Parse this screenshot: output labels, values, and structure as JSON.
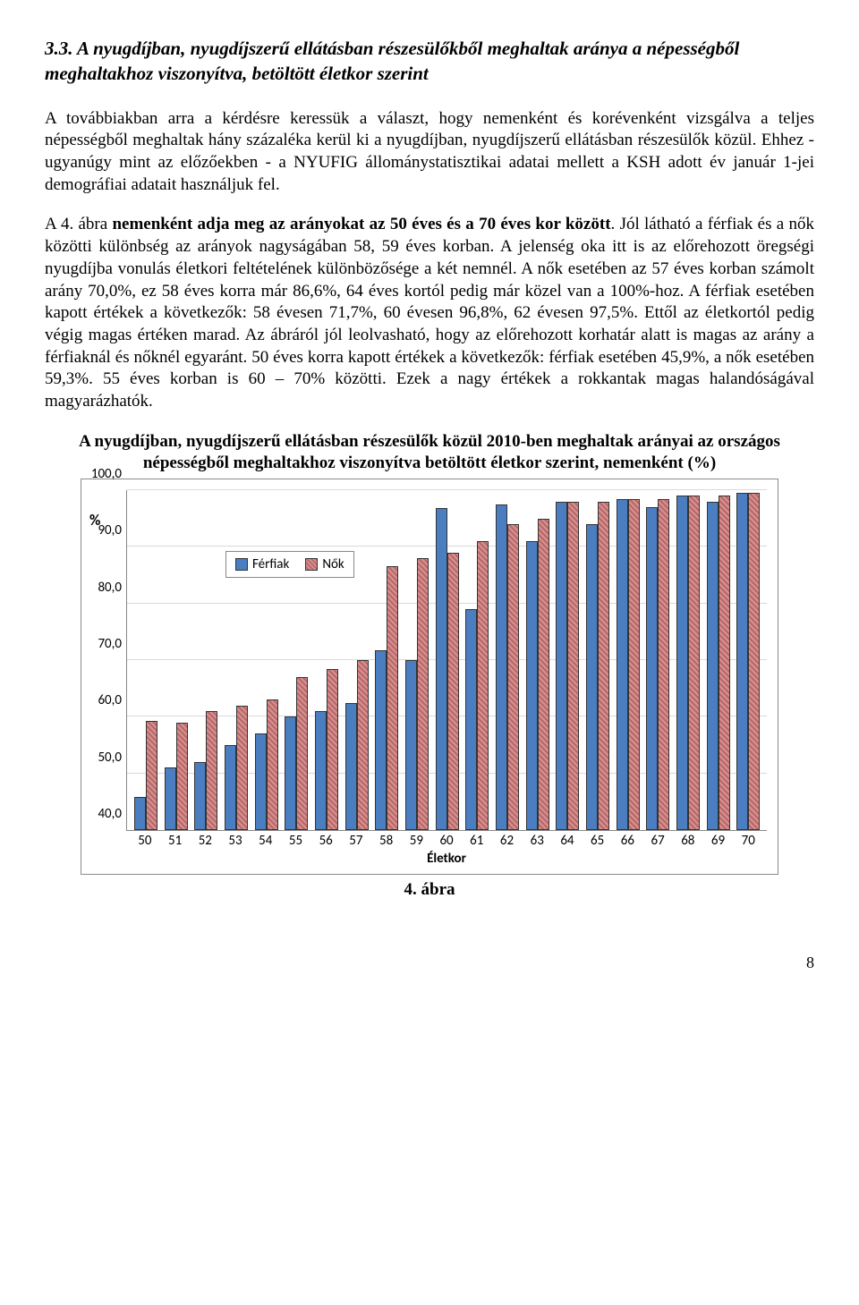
{
  "heading": "3.3. A nyugdíjban, nyugdíjszerű ellátásban részesülőkből meghaltak aránya a népességből meghaltakhoz viszonyítva, betöltött életkor szerint",
  "para1": "A továbbiakban arra a kérdésre keressük a választ, hogy nemenként és korévenként vizsgálva a teljes népességből meghaltak hány százaléka kerül ki a nyugdíjban, nyugdíjszerű ellátásban részesülők közül. Ehhez - ugyanúgy mint az előzőekben - a NYUFIG állománystatisztikai adatai mellett a KSH adott év január 1-jei demográfiai adatait használjuk fel.",
  "para2": "A 4. ábra nemenként adja meg az arányokat az 50 éves és a 70 éves kor között. Jól látható a férfiak és a nők közötti különbség az arányok nagyságában  58, 59 éves korban. A jelenség oka itt is az előrehozott öregségi nyugdíjba vonulás életkori feltételének különbözősége a két nemnél. A nők esetében az 57 éves korban számolt arány 70,0%, ez 58 éves korra már 86,6%, 64 éves kortól pedig már közel van a 100%-hoz. A férfiak esetében kapott értékek a következők: 58 évesen 71,7%, 60 évesen 96,8%, 62 évesen 97,5%. Ettől az életkortól pedig végig magas értéken marad. Az ábráról jól leolvasható, hogy az előrehozott korhatár alatt is magas az arány a férfiaknál és nőknél egyaránt. 50 éves korra kapott értékek a következők: férfiak esetében 45,9%, a nők esetében 59,3%. 55 éves korban is 60 – 70% közötti. Ezek a nagy értékek a rokkantak magas halandóságával magyarázhatók.",
  "chart": {
    "title": "A nyugdíjban, nyugdíjszerű ellátásban részesülők közül 2010-ben meghaltak arányai az országos népességből meghaltakhoz viszonyítva betöltött életkor szerint, nemenként (%)",
    "type": "bar",
    "x_axis_title": "Életkor",
    "y_unit": "%",
    "ylim_min": 40,
    "ylim_max": 100,
    "ytick_step": 10,
    "yticks": [
      "40,0",
      "50,0",
      "60,0",
      "70,0",
      "80,0",
      "90,0",
      "100,0"
    ],
    "grid_color": "#d9d9d9",
    "background_color": "#ffffff",
    "border_color": "#8a8a8a",
    "bar_border": "#333333",
    "male_color": "#4a7ec0",
    "female_color": "#d89090",
    "female_hatch": "diag45",
    "legend": {
      "male": "Férfiak",
      "female": "Nők"
    },
    "ages": [
      50,
      51,
      52,
      53,
      54,
      55,
      56,
      57,
      58,
      59,
      60,
      61,
      62,
      63,
      64,
      65,
      66,
      67,
      68,
      69,
      70
    ],
    "male": [
      45.9,
      51.0,
      52.0,
      55.0,
      57.0,
      60.0,
      61.0,
      62.5,
      71.7,
      70.0,
      96.8,
      79.0,
      97.5,
      91.0,
      98.0,
      94.0,
      98.5,
      97.0,
      99.0,
      98.0,
      99.5
    ],
    "female": [
      59.3,
      59.0,
      61.0,
      62.0,
      63.0,
      67.0,
      68.5,
      70.0,
      86.6,
      88.0,
      89.0,
      91.0,
      94.0,
      95.0,
      98.0,
      98.0,
      98.5,
      98.5,
      99.0,
      99.0,
      99.5
    ]
  },
  "fig_caption": "4.   ábra",
  "page_number": "8"
}
